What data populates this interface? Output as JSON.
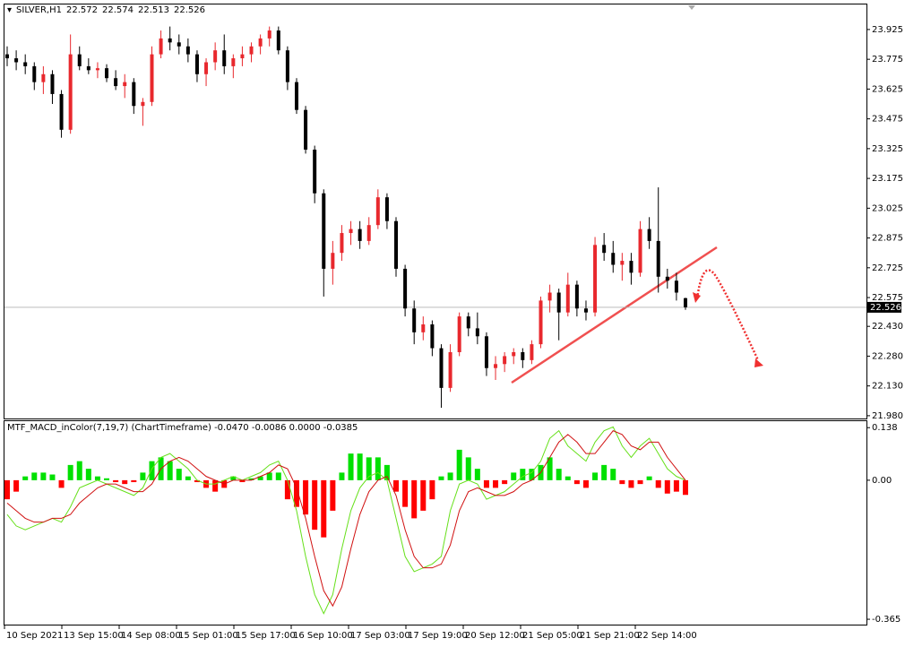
{
  "chart_data": [
    {
      "type": "candlestick",
      "symbol": "SILVER,H1",
      "header_ohlc": [
        22.572,
        22.574,
        22.513,
        22.526
      ],
      "up_color": "#e8282d",
      "down_color": "#000000",
      "current_price": 22.526,
      "ylim": [
        21.966,
        24.051
      ],
      "yticks": [
        23.925,
        23.775,
        23.625,
        23.475,
        23.325,
        23.175,
        23.025,
        22.875,
        22.725,
        22.575,
        {
          "value": 22.43,
          "label": "22.430"
        },
        {
          "value": 22.28,
          "label": "22.280"
        },
        {
          "value": 22.13,
          "label": "22.130"
        },
        {
          "value": 21.98,
          "label": "21.980"
        }
      ],
      "ohlc": [
        [
          23.8,
          23.84,
          23.74,
          23.78
        ],
        [
          23.78,
          23.82,
          23.72,
          23.76
        ],
        [
          23.76,
          23.8,
          23.7,
          23.74
        ],
        [
          23.74,
          23.76,
          23.62,
          23.66
        ],
        [
          23.66,
          23.74,
          23.6,
          23.7
        ],
        [
          23.7,
          23.72,
          23.55,
          23.6
        ],
        [
          23.6,
          23.62,
          23.38,
          23.42
        ],
        [
          23.42,
          23.9,
          23.4,
          23.8
        ],
        [
          23.8,
          23.84,
          23.72,
          23.74
        ],
        [
          23.74,
          23.78,
          23.7,
          23.72
        ],
        [
          23.72,
          23.76,
          23.68,
          23.73
        ],
        [
          23.73,
          23.75,
          23.66,
          23.68
        ],
        [
          23.68,
          23.72,
          23.62,
          23.64
        ],
        [
          23.64,
          23.7,
          23.58,
          23.66
        ],
        [
          23.66,
          23.68,
          23.5,
          23.54
        ],
        [
          23.54,
          23.58,
          23.44,
          23.56
        ],
        [
          23.56,
          23.84,
          23.54,
          23.8
        ],
        [
          23.8,
          23.92,
          23.78,
          23.88
        ],
        [
          23.88,
          23.94,
          23.82,
          23.86
        ],
        [
          23.86,
          23.9,
          23.8,
          23.84
        ],
        [
          23.84,
          23.88,
          23.76,
          23.8
        ],
        [
          23.8,
          23.82,
          23.66,
          23.7
        ],
        [
          23.7,
          23.78,
          23.64,
          23.76
        ],
        [
          23.76,
          23.86,
          23.72,
          23.82
        ],
        [
          23.82,
          23.9,
          23.7,
          23.74
        ],
        [
          23.74,
          23.8,
          23.68,
          23.78
        ],
        [
          23.78,
          23.84,
          23.74,
          23.8
        ],
        [
          23.8,
          23.86,
          23.76,
          23.84
        ],
        [
          23.84,
          23.9,
          23.8,
          23.88
        ],
        [
          23.88,
          23.94,
          23.84,
          23.92
        ],
        [
          23.92,
          23.94,
          23.8,
          23.82
        ],
        [
          23.82,
          23.84,
          23.62,
          23.66
        ],
        [
          23.66,
          23.68,
          23.5,
          23.52
        ],
        [
          23.52,
          23.54,
          23.3,
          23.32
        ],
        [
          23.32,
          23.34,
          23.05,
          23.1
        ],
        [
          23.1,
          23.12,
          22.58,
          22.72
        ],
        [
          22.72,
          22.86,
          22.64,
          22.8
        ],
        [
          22.8,
          22.94,
          22.76,
          22.9
        ],
        [
          22.9,
          22.96,
          22.84,
          22.92
        ],
        [
          22.92,
          22.96,
          22.82,
          22.86
        ],
        [
          22.86,
          22.98,
          22.84,
          22.94
        ],
        [
          22.94,
          23.12,
          22.92,
          23.08
        ],
        [
          23.08,
          23.1,
          22.92,
          22.96
        ],
        [
          22.96,
          22.98,
          22.68,
          22.72
        ],
        [
          22.72,
          22.74,
          22.48,
          22.52
        ],
        [
          22.52,
          22.56,
          22.34,
          22.4
        ],
        [
          22.4,
          22.48,
          22.36,
          22.44
        ],
        [
          22.44,
          22.46,
          22.28,
          22.32
        ],
        [
          22.32,
          22.34,
          22.02,
          22.12
        ],
        [
          22.12,
          22.34,
          22.1,
          22.3
        ],
        [
          22.3,
          22.5,
          22.28,
          22.48
        ],
        [
          22.48,
          22.5,
          22.38,
          22.42
        ],
        [
          22.42,
          22.5,
          22.34,
          22.38
        ],
        [
          22.38,
          22.4,
          22.18,
          22.22
        ],
        [
          22.22,
          22.28,
          22.16,
          22.24
        ],
        [
          22.24,
          22.3,
          22.2,
          22.28
        ],
        [
          22.28,
          22.32,
          22.24,
          22.3
        ],
        [
          22.3,
          22.32,
          22.22,
          22.26
        ],
        [
          22.26,
          22.36,
          22.24,
          22.34
        ],
        [
          22.34,
          22.58,
          22.32,
          22.56
        ],
        [
          22.56,
          22.64,
          22.5,
          22.6
        ],
        [
          22.6,
          22.62,
          22.36,
          22.5
        ],
        [
          22.5,
          22.7,
          22.48,
          22.64
        ],
        [
          22.64,
          22.66,
          22.48,
          22.52
        ],
        [
          22.52,
          22.56,
          22.46,
          22.5
        ],
        [
          22.5,
          22.88,
          22.48,
          22.84
        ],
        [
          22.84,
          22.9,
          22.76,
          22.8
        ],
        [
          22.8,
          22.86,
          22.7,
          22.74
        ],
        [
          22.74,
          22.8,
          22.66,
          22.76
        ],
        [
          22.76,
          22.8,
          22.64,
          22.7
        ],
        [
          22.7,
          22.96,
          22.68,
          22.92
        ],
        [
          22.92,
          22.98,
          22.82,
          22.86
        ],
        [
          22.86,
          23.13,
          22.6,
          22.68
        ],
        [
          22.68,
          22.72,
          22.62,
          22.66
        ],
        [
          22.66,
          22.7,
          22.56,
          22.6
        ],
        [
          22.572,
          22.574,
          22.513,
          22.526
        ]
      ]
    },
    {
      "type": "macd",
      "title": "MTF_MACD_inColor(7,19,7) (ChartTimeframe) -0.0470 -0.0086 0.0000 -0.0385",
      "ylim": [
        -0.379,
        0.155
      ],
      "yticks": [
        0.138,
        {
          "value": 0,
          "label": "0.00"
        },
        -0.365
      ],
      "up_color": "#00e000",
      "down_color": "#ff0000",
      "histogram": [
        -0.05,
        -0.03,
        0.01,
        0.02,
        0.02,
        0.015,
        -0.02,
        0.04,
        0.05,
        0.03,
        0.01,
        0.005,
        -0.005,
        -0.01,
        -0.005,
        0.02,
        0.05,
        0.06,
        0.05,
        0.03,
        0.01,
        -0.005,
        -0.02,
        -0.03,
        -0.02,
        0.01,
        -0.005,
        0.005,
        0.01,
        0.02,
        0.02,
        -0.05,
        -0.07,
        -0.09,
        -0.13,
        -0.15,
        -0.08,
        0.02,
        0.07,
        0.07,
        0.06,
        0.06,
        0.04,
        -0.03,
        -0.07,
        -0.1,
        -0.08,
        -0.05,
        0.01,
        0.02,
        0.08,
        0.06,
        0.03,
        -0.02,
        -0.02,
        -0.01,
        0.02,
        0.03,
        0.03,
        0.04,
        0.06,
        0.03,
        0.01,
        -0.01,
        -0.02,
        0.02,
        0.04,
        0.03,
        -0.01,
        -0.02,
        -0.01,
        0.01,
        -0.02,
        -0.035,
        -0.03,
        -0.0385
      ],
      "lines": [
        {
          "color": "#66e01a",
          "values": [
            -0.09,
            -0.12,
            -0.13,
            -0.12,
            -0.11,
            -0.1,
            -0.11,
            -0.07,
            -0.02,
            -0.01,
            0.0,
            -0.01,
            -0.02,
            -0.03,
            -0.04,
            -0.02,
            0.03,
            0.06,
            0.07,
            0.05,
            0.03,
            0.0,
            -0.01,
            -0.01,
            0.0,
            0.01,
            0.0,
            0.01,
            0.02,
            0.04,
            0.05,
            0.0,
            -0.08,
            -0.2,
            -0.3,
            -0.35,
            -0.3,
            -0.18,
            -0.08,
            -0.02,
            0.01,
            0.02,
            0.0,
            -0.1,
            -0.2,
            -0.24,
            -0.23,
            -0.22,
            -0.2,
            -0.08,
            -0.01,
            0.0,
            -0.01,
            -0.05,
            -0.04,
            -0.03,
            -0.01,
            0.01,
            0.02,
            0.05,
            0.11,
            0.13,
            0.09,
            0.07,
            0.05,
            0.1,
            0.13,
            0.14,
            0.09,
            0.06,
            0.09,
            0.11,
            0.07,
            0.03,
            0.01,
            0.0
          ]
        },
        {
          "color": "#d01010",
          "values": [
            -0.06,
            -0.08,
            -0.1,
            -0.11,
            -0.11,
            -0.1,
            -0.1,
            -0.09,
            -0.06,
            -0.04,
            -0.02,
            -0.01,
            -0.01,
            -0.02,
            -0.03,
            -0.03,
            -0.01,
            0.03,
            0.05,
            0.06,
            0.05,
            0.03,
            0.01,
            0.0,
            -0.01,
            0.0,
            0.0,
            0.0,
            0.01,
            0.02,
            0.04,
            0.03,
            -0.02,
            -0.1,
            -0.2,
            -0.29,
            -0.33,
            -0.28,
            -0.18,
            -0.09,
            -0.03,
            0.0,
            0.01,
            -0.04,
            -0.13,
            -0.2,
            -0.23,
            -0.23,
            -0.22,
            -0.17,
            -0.08,
            -0.03,
            -0.02,
            -0.03,
            -0.04,
            -0.04,
            -0.03,
            -0.01,
            0.0,
            0.02,
            0.06,
            0.1,
            0.12,
            0.1,
            0.07,
            0.07,
            0.1,
            0.13,
            0.12,
            0.09,
            0.08,
            0.1,
            0.1,
            0.06,
            0.03,
            0.0
          ]
        }
      ]
    }
  ],
  "time_axis": {
    "labels": [
      "10 Sep 2021",
      "13 Sep 15:00",
      "14 Sep 08:00",
      "15 Sep 01:00",
      "15 Sep 17:00",
      "16 Sep 10:00",
      "17 Sep 03:00",
      "17 Sep 19:00",
      "20 Sep 12:00",
      "21 Sep 05:00",
      "21 Sep 21:00",
      "22 Sep 14:00"
    ]
  }
}
